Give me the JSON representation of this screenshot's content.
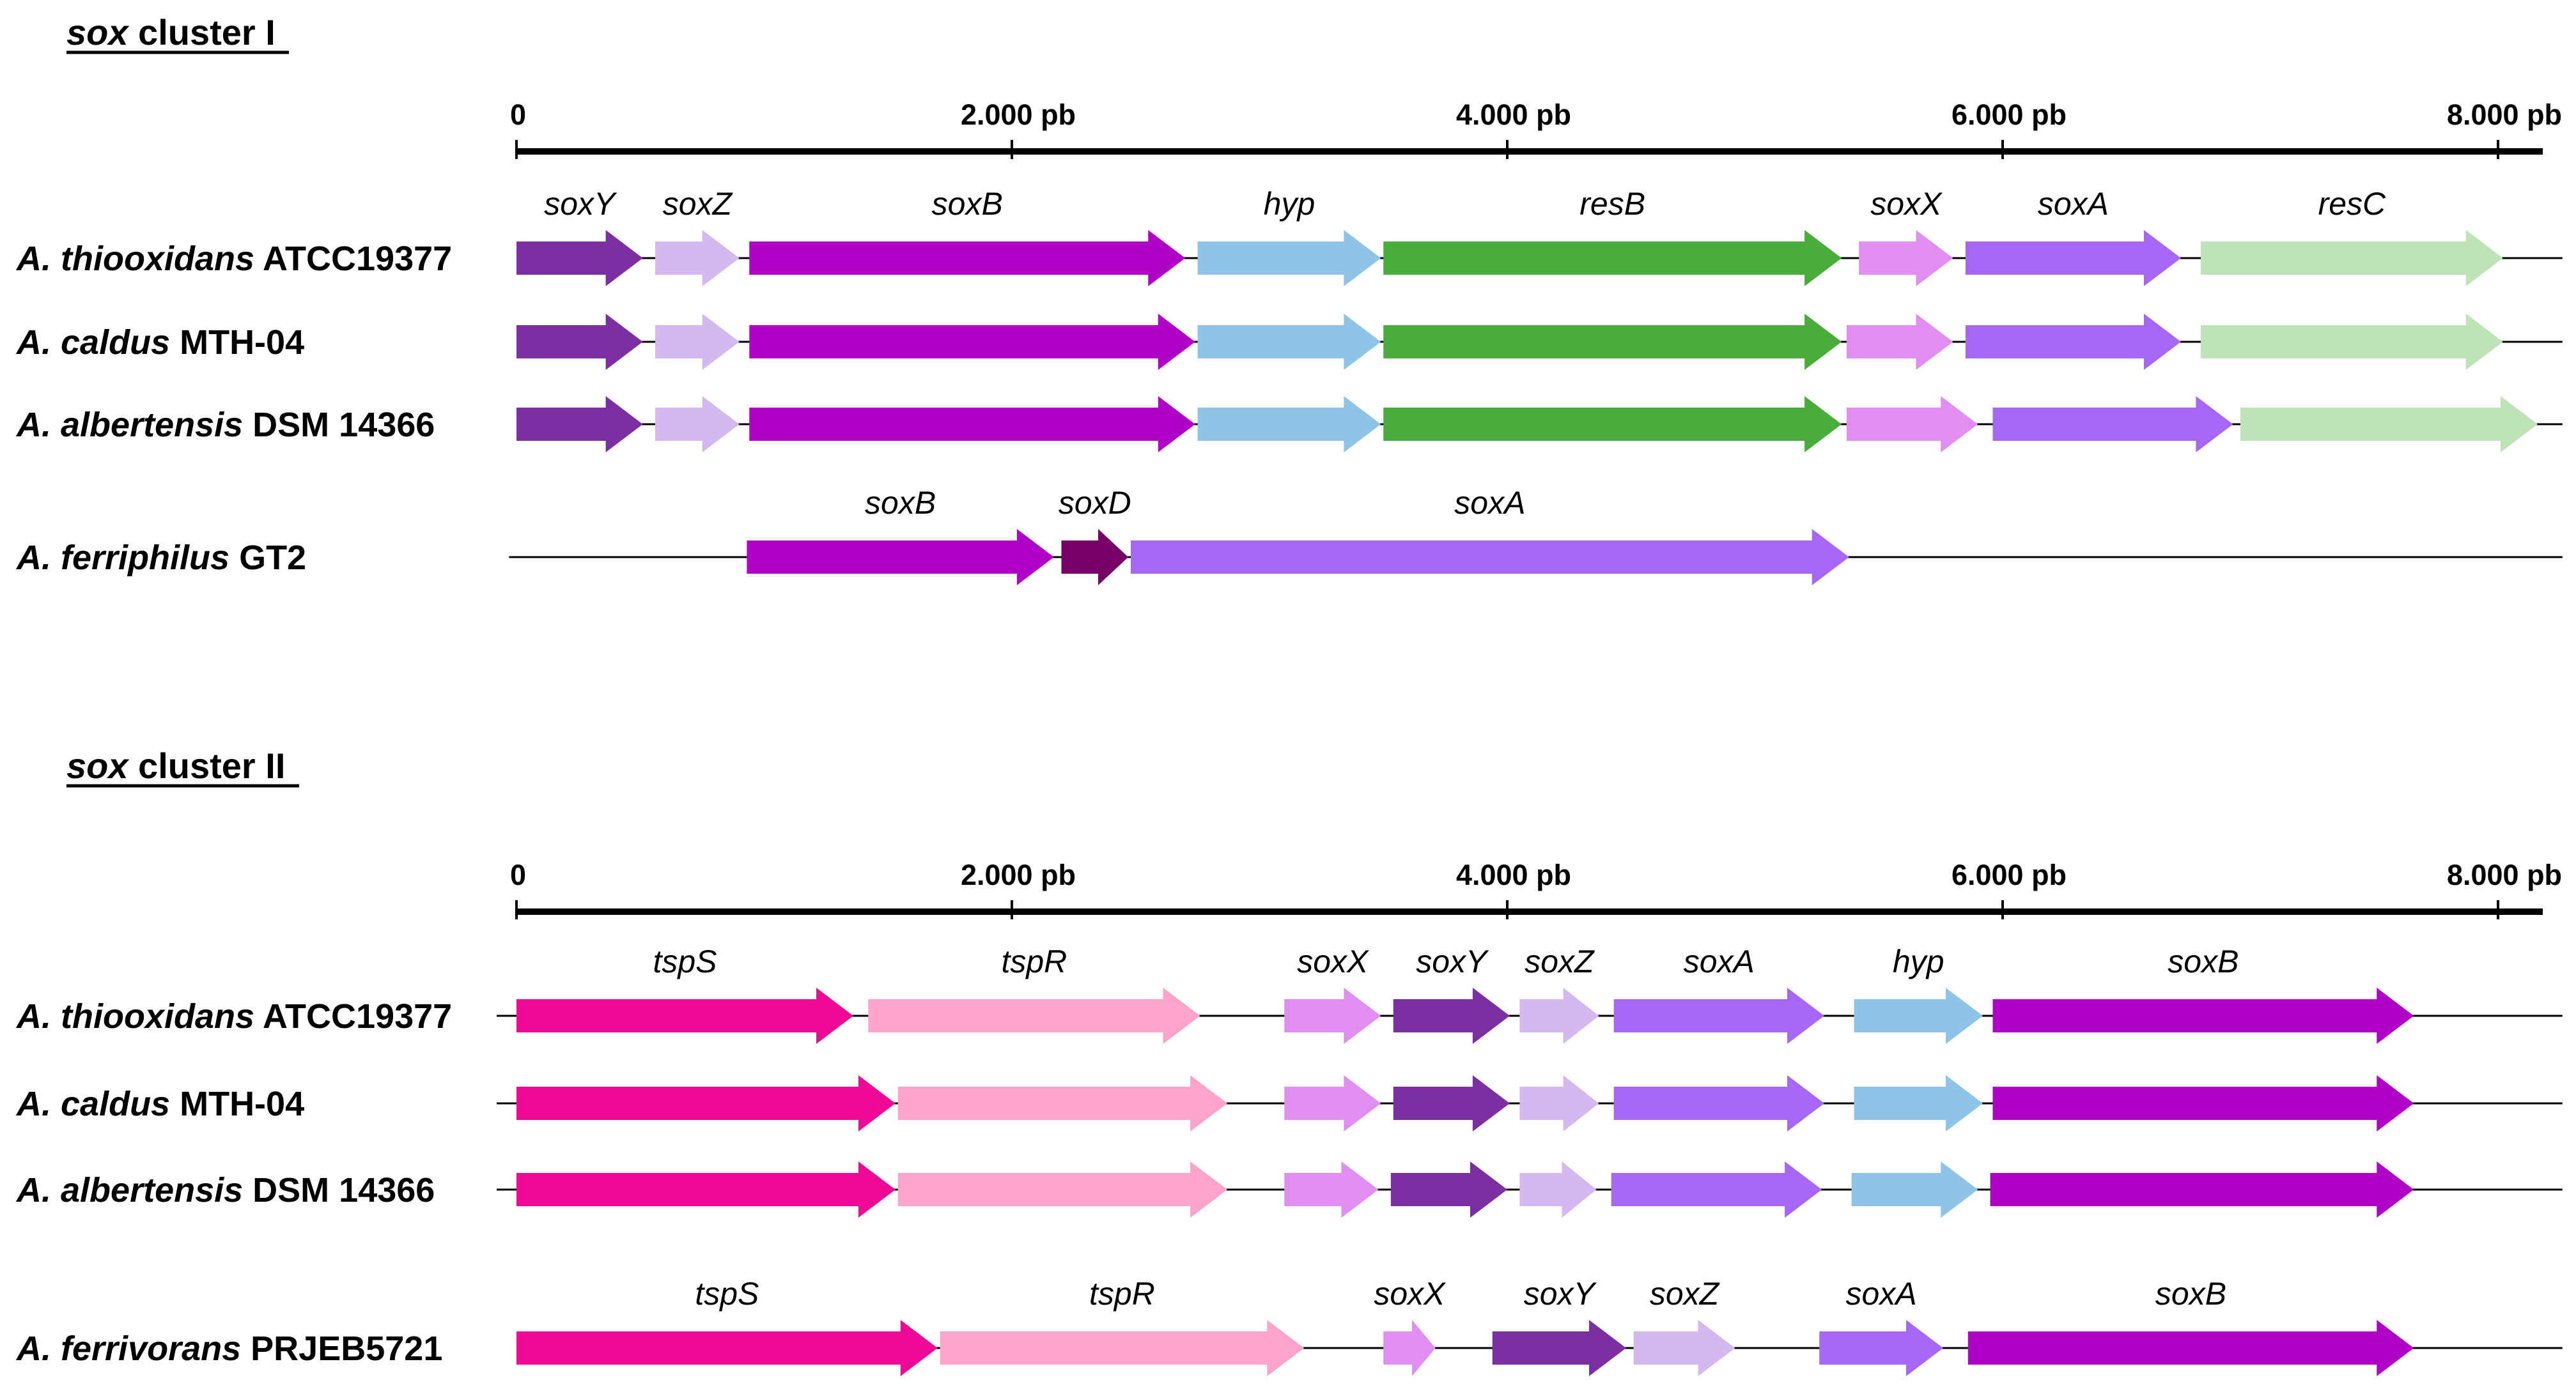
{
  "clusters": [
    {
      "title_gene": "sox",
      "title_rest": " cluster I",
      "axis": {
        "min_bp": 0,
        "max_bp": 8000,
        "ticks": [
          {
            "bp": 0,
            "label": "0"
          },
          {
            "bp": 2000,
            "label": "2.000 pb"
          },
          {
            "bp": 4000,
            "label": "4.000 pb"
          },
          {
            "bp": 6000,
            "label": "6.000 pb"
          },
          {
            "bp": 8000,
            "label": "8.000 pb"
          }
        ]
      },
      "rows": [
        {
          "genus": "A. ",
          "species": "thiooxidans",
          "strain": " ATCC19377",
          "labels_above": true,
          "line": [
            0,
            8260
          ],
          "genes": [
            {
              "name": "soxY",
              "start": 0,
              "end": 510,
              "color": "#7b2fa0"
            },
            {
              "name": "soxZ",
              "start": 560,
              "end": 900,
              "color": "#d6b8f0"
            },
            {
              "name": "soxB",
              "start": 940,
              "end": 2700,
              "color": "#b000c8"
            },
            {
              "name": "hyp",
              "start": 2750,
              "end": 3490,
              "color": "#8dc4e8"
            },
            {
              "name": "resB",
              "start": 3500,
              "end": 5350,
              "color": "#48ad3a"
            },
            {
              "name": "soxX",
              "start": 5420,
              "end": 5800,
              "color": "#e28ef0"
            },
            {
              "name": "soxA",
              "start": 5850,
              "end": 6720,
              "color": "#a866f5"
            },
            {
              "name": "resC",
              "start": 6800,
              "end": 8020,
              "color": "#bde3b6"
            }
          ]
        },
        {
          "genus": "A. ",
          "species": "caldus",
          "strain": " MTH-04",
          "labels_above": false,
          "line": [
            0,
            8260
          ],
          "genes": [
            {
              "name": "soxY",
              "start": 0,
              "end": 510,
              "color": "#7b2fa0"
            },
            {
              "name": "soxZ",
              "start": 560,
              "end": 900,
              "color": "#d6b8f0"
            },
            {
              "name": "soxB",
              "start": 940,
              "end": 2740,
              "color": "#b000c8"
            },
            {
              "name": "hyp",
              "start": 2750,
              "end": 3490,
              "color": "#8dc4e8"
            },
            {
              "name": "resB",
              "start": 3500,
              "end": 5350,
              "color": "#48ad3a"
            },
            {
              "name": "soxX",
              "start": 5370,
              "end": 5800,
              "color": "#e28ef0"
            },
            {
              "name": "soxA",
              "start": 5850,
              "end": 6720,
              "color": "#a866f5"
            },
            {
              "name": "resC",
              "start": 6800,
              "end": 8020,
              "color": "#bde3b6"
            }
          ]
        },
        {
          "genus": "A. ",
          "species": "albertensis",
          "strain": " DSM 14366",
          "labels_above": false,
          "line": [
            0,
            8260
          ],
          "genes": [
            {
              "name": "soxY",
              "start": 0,
              "end": 510,
              "color": "#7b2fa0"
            },
            {
              "name": "soxZ",
              "start": 560,
              "end": 900,
              "color": "#d6b8f0"
            },
            {
              "name": "soxB",
              "start": 940,
              "end": 2740,
              "color": "#b000c8"
            },
            {
              "name": "hyp",
              "start": 2750,
              "end": 3490,
              "color": "#8dc4e8"
            },
            {
              "name": "resB",
              "start": 3500,
              "end": 5350,
              "color": "#48ad3a"
            },
            {
              "name": "soxX",
              "start": 5370,
              "end": 5900,
              "color": "#e28ef0"
            },
            {
              "name": "soxA",
              "start": 5960,
              "end": 6930,
              "color": "#a866f5"
            },
            {
              "name": "resC",
              "start": 6960,
              "end": 8160,
              "color": "#bde3b6"
            }
          ]
        },
        {
          "genus": "A. ",
          "species": "ferriphilus",
          "strain": " GT2",
          "labels_above": true,
          "line": [
            -30,
            8260
          ],
          "genes": [
            {
              "name": "soxB",
              "start": 930,
              "end": 2170,
              "color": "#b000c8"
            },
            {
              "name": "soxD",
              "start": 2200,
              "end": 2470,
              "color": "#770066"
            },
            {
              "name": "soxA",
              "start": 2480,
              "end": 5380,
              "color": "#a866f5"
            }
          ]
        }
      ]
    },
    {
      "title_gene": "sox",
      "title_rest": " cluster II",
      "axis": {
        "min_bp": 0,
        "max_bp": 8000,
        "ticks": [
          {
            "bp": 0,
            "label": "0"
          },
          {
            "bp": 2000,
            "label": "2.000 pb"
          },
          {
            "bp": 4000,
            "label": "4.000 pb"
          },
          {
            "bp": 6000,
            "label": "6.000 pb"
          },
          {
            "bp": 8000,
            "label": "8.000 pb"
          }
        ]
      },
      "rows": [
        {
          "genus": "A. ",
          "species": "thiooxidans",
          "strain": " ATCC19377",
          "labels_above": true,
          "line": [
            -80,
            8260
          ],
          "genes": [
            {
              "name": "tspS",
              "start": 0,
              "end": 1360,
              "color": "#ee0896"
            },
            {
              "name": "tspR",
              "start": 1420,
              "end": 2760,
              "color": "#ffa2cc"
            },
            {
              "name": "soxX",
              "start": 3100,
              "end": 3490,
              "color": "#e28ef0"
            },
            {
              "name": "soxY",
              "start": 3540,
              "end": 4010,
              "color": "#7b2fa0"
            },
            {
              "name": "soxZ",
              "start": 4050,
              "end": 4370,
              "color": "#d6b8f0"
            },
            {
              "name": "soxA",
              "start": 4430,
              "end": 5280,
              "color": "#a866f5"
            },
            {
              "name": "hyp",
              "start": 5400,
              "end": 5920,
              "color": "#8dc4e8"
            },
            {
              "name": "soxB",
              "start": 5960,
              "end": 7660,
              "color": "#b000c8"
            }
          ]
        },
        {
          "genus": "A. ",
          "species": "caldus",
          "strain": " MTH-04",
          "labels_above": false,
          "line": [
            -80,
            8260
          ],
          "genes": [
            {
              "name": "tspS",
              "start": 0,
              "end": 1530,
              "color": "#ee0896"
            },
            {
              "name": "tspR",
              "start": 1540,
              "end": 2870,
              "color": "#ffa2cc"
            },
            {
              "name": "soxX",
              "start": 3100,
              "end": 3490,
              "color": "#e28ef0"
            },
            {
              "name": "soxY",
              "start": 3540,
              "end": 4010,
              "color": "#7b2fa0"
            },
            {
              "name": "soxZ",
              "start": 4050,
              "end": 4370,
              "color": "#d6b8f0"
            },
            {
              "name": "soxA",
              "start": 4430,
              "end": 5280,
              "color": "#a866f5"
            },
            {
              "name": "hyp",
              "start": 5400,
              "end": 5920,
              "color": "#8dc4e8"
            },
            {
              "name": "soxB",
              "start": 5960,
              "end": 7660,
              "color": "#b000c8"
            }
          ]
        },
        {
          "genus": "A. ",
          "species": "albertensis",
          "strain": " DSM 14366",
          "labels_above": false,
          "line": [
            -80,
            8260
          ],
          "genes": [
            {
              "name": "tspS",
              "start": 0,
              "end": 1530,
              "color": "#ee0896"
            },
            {
              "name": "tspR",
              "start": 1540,
              "end": 2870,
              "color": "#ffa2cc"
            },
            {
              "name": "soxX",
              "start": 3100,
              "end": 3480,
              "color": "#e28ef0"
            },
            {
              "name": "soxY",
              "start": 3530,
              "end": 4000,
              "color": "#7b2fa0"
            },
            {
              "name": "soxZ",
              "start": 4050,
              "end": 4360,
              "color": "#d6b8f0"
            },
            {
              "name": "soxA",
              "start": 4420,
              "end": 5270,
              "color": "#a866f5"
            },
            {
              "name": "hyp",
              "start": 5390,
              "end": 5900,
              "color": "#8dc4e8"
            },
            {
              "name": "soxB",
              "start": 5950,
              "end": 7660,
              "color": "#b000c8"
            }
          ]
        },
        {
          "genus": "A. ",
          "species": "ferrivorans",
          "strain": " PRJEB5721",
          "labels_above": true,
          "line": [
            0,
            8260
          ],
          "genes": [
            {
              "name": "tspS",
              "start": 0,
              "end": 1700,
              "color": "#ee0896"
            },
            {
              "name": "tspR",
              "start": 1710,
              "end": 3180,
              "color": "#ffa2cc"
            },
            {
              "name": "soxX",
              "start": 3500,
              "end": 3710,
              "color": "#e28ef0"
            },
            {
              "name": "soxY",
              "start": 3940,
              "end": 4480,
              "color": "#7b2fa0"
            },
            {
              "name": "soxZ",
              "start": 4510,
              "end": 4920,
              "color": "#d6b8f0"
            },
            {
              "name": "soxA",
              "start": 5260,
              "end": 5760,
              "color": "#a866f5"
            },
            {
              "name": "soxB",
              "start": 5860,
              "end": 7660,
              "color": "#b000c8"
            }
          ]
        }
      ]
    }
  ]
}
